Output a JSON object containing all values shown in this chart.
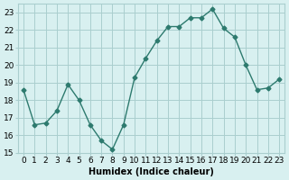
{
  "x": [
    0,
    1,
    2,
    3,
    4,
    5,
    6,
    7,
    8,
    9,
    10,
    11,
    12,
    13,
    14,
    15,
    16,
    17,
    18,
    19,
    20,
    21,
    22,
    23
  ],
  "y": [
    18.6,
    16.6,
    16.7,
    17.4,
    18.9,
    18.0,
    16.6,
    15.7,
    15.2,
    16.6,
    19.3,
    20.4,
    21.4,
    22.2,
    22.2,
    22.7,
    22.7,
    23.2,
    22.1,
    21.6,
    20.0,
    18.6,
    18.7,
    19.2
  ],
  "line_color": "#2d7a6e",
  "marker": "D",
  "markersize": 2.5,
  "bg_color": "#d8f0f0",
  "grid_color": "#aacece",
  "xlabel": "Humidex (Indice chaleur)",
  "ylabel": "",
  "xlim": [
    -0.5,
    23.5
  ],
  "ylim": [
    15,
    23.5
  ],
  "yticks": [
    15,
    16,
    17,
    18,
    19,
    20,
    21,
    22,
    23
  ],
  "xticks": [
    0,
    1,
    2,
    3,
    4,
    5,
    6,
    7,
    8,
    9,
    10,
    11,
    12,
    13,
    14,
    15,
    16,
    17,
    18,
    19,
    20,
    21,
    22,
    23
  ],
  "label_fontsize": 7,
  "tick_fontsize": 6.5
}
